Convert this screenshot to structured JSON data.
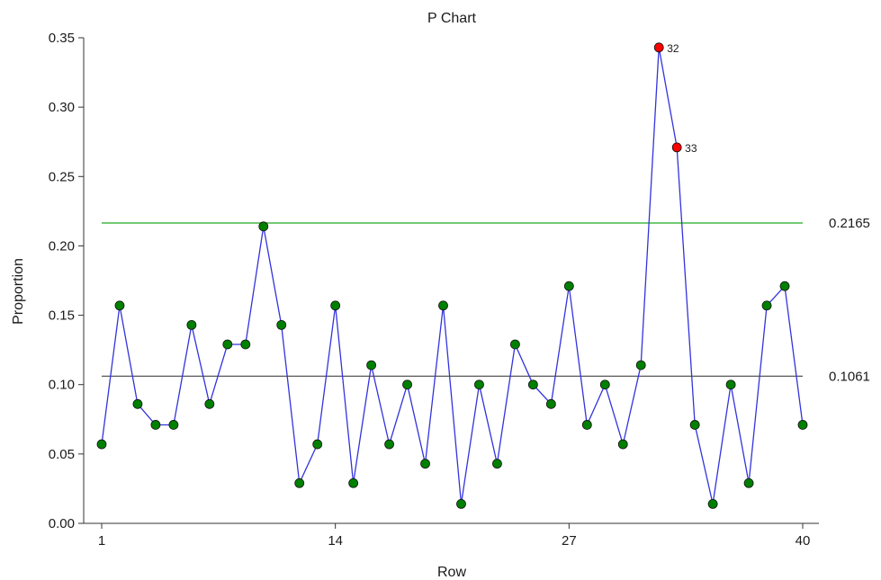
{
  "chart_data": {
    "type": "line",
    "title": "P Chart",
    "xlabel": "Row",
    "ylabel": "Proportion",
    "xlim": [
      1,
      40
    ],
    "ylim": [
      0,
      0.35
    ],
    "x_ticks": [
      "1",
      "14",
      "27",
      "40"
    ],
    "y_ticks": [
      "0.00",
      "0.05",
      "0.10",
      "0.15",
      "0.20",
      "0.25",
      "0.30",
      "0.35"
    ],
    "grid": false,
    "x": [
      1,
      2,
      3,
      4,
      5,
      6,
      7,
      8,
      9,
      10,
      11,
      12,
      13,
      14,
      15,
      16,
      17,
      18,
      19,
      20,
      21,
      22,
      23,
      24,
      25,
      26,
      27,
      28,
      29,
      30,
      31,
      32,
      33,
      34,
      35,
      36,
      37,
      38,
      39,
      40
    ],
    "values": [
      0.057,
      0.157,
      0.086,
      0.071,
      0.071,
      0.143,
      0.086,
      0.129,
      0.129,
      0.214,
      0.143,
      0.029,
      0.057,
      0.157,
      0.029,
      0.114,
      0.057,
      0.1,
      0.043,
      0.157,
      0.014,
      0.1,
      0.043,
      0.129,
      0.1,
      0.086,
      0.171,
      0.071,
      0.1,
      0.057,
      0.114,
      0.343,
      0.271,
      0.071,
      0.014,
      0.1,
      0.029,
      0.157,
      0.171,
      0.071
    ],
    "center_line": {
      "value": 0.1061,
      "label": "0.1061"
    },
    "upper_limit": {
      "value": 0.2165,
      "label": "0.2165"
    },
    "out_of_control": [
      {
        "x": 32,
        "label": "32"
      },
      {
        "x": 33,
        "label": "33"
      }
    ],
    "colors": {
      "line": "#3333dd",
      "point": "#008000",
      "out_point": "#ff0000",
      "center_line": "#444444",
      "upper_limit": "#22aa22",
      "axis": "#333333"
    }
  }
}
